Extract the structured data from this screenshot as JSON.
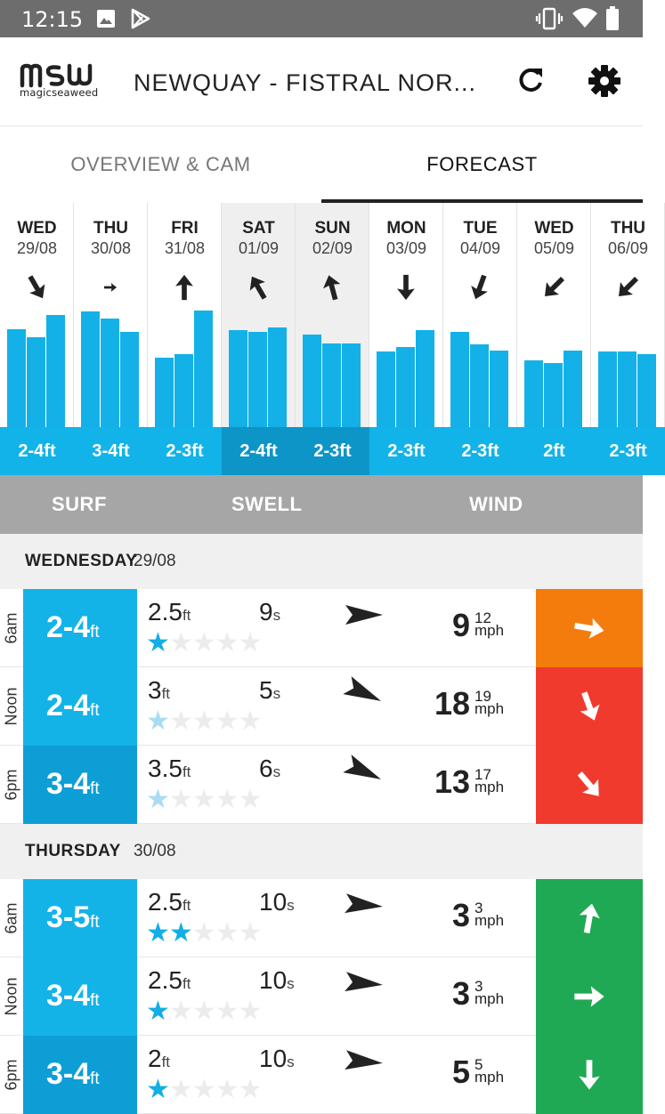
{
  "status_bar": {
    "time": "12:15",
    "icons": [
      "image-icon",
      "play-store-icon",
      "vibrate-icon",
      "wifi-icon",
      "battery-icon"
    ]
  },
  "app_bar": {
    "logo_text": "magicseaweed",
    "logo_mark": "msw",
    "title": "NEWQUAY - FISTRAL NOR...",
    "refresh_icon": "refresh-icon",
    "settings_icon": "gear-icon"
  },
  "tabs": [
    {
      "label": "OVERVIEW & CAM",
      "active": false
    },
    {
      "label": "FORECAST",
      "active": true
    }
  ],
  "days": [
    {
      "name": "WED",
      "date": "29/08",
      "range": "2-4ft",
      "arrow_deg": 150,
      "bars": [
        0.69,
        0.63,
        0.79
      ],
      "highlighted": false
    },
    {
      "name": "THU",
      "date": "30/08",
      "range": "3-4ft",
      "arrow_deg": 90,
      "arrow_small": true,
      "bars": [
        0.81,
        0.76,
        0.67
      ],
      "highlighted": false
    },
    {
      "name": "FRI",
      "date": "31/08",
      "range": "2-3ft",
      "arrow_deg": 0,
      "bars": [
        0.49,
        0.51,
        0.82
      ],
      "highlighted": false
    },
    {
      "name": "SAT",
      "date": "01/09",
      "range": "2-4ft",
      "arrow_deg": -30,
      "bars": [
        0.68,
        0.67,
        0.7
      ],
      "highlighted": true
    },
    {
      "name": "SUN",
      "date": "02/09",
      "range": "2-3ft",
      "arrow_deg": -15,
      "bars": [
        0.65,
        0.59,
        0.59
      ],
      "highlighted": true
    },
    {
      "name": "MON",
      "date": "03/09",
      "range": "2-3ft",
      "arrow_deg": 180,
      "bars": [
        0.53,
        0.56,
        0.68
      ],
      "highlighted": false
    },
    {
      "name": "TUE",
      "date": "04/09",
      "range": "2-3ft",
      "arrow_deg": 200,
      "bars": [
        0.67,
        0.58,
        0.54
      ],
      "highlighted": false
    },
    {
      "name": "WED",
      "date": "05/09",
      "range": "2ft",
      "arrow_deg": 225,
      "bars": [
        0.47,
        0.45,
        0.54
      ],
      "highlighted": false
    },
    {
      "name": "THU",
      "date": "06/09",
      "range": "2-3ft",
      "arrow_deg": 225,
      "bars": [
        0.53,
        0.53,
        0.51
      ],
      "highlighted": false
    }
  ],
  "column_headers": {
    "surf": "SURF",
    "swell": "SWELL",
    "wind": "WIND"
  },
  "sections": [
    {
      "day_name": "WEDNESDAY",
      "day_date": "29/08",
      "rows": [
        {
          "time": "6am",
          "surf": "2-4",
          "surf_unit": "ft",
          "swell_height": "2.5",
          "swell_unit": "ft",
          "period": "9",
          "period_unit": "s",
          "stars": 1,
          "faded": false,
          "swell_dir_deg": 0,
          "wind_speed": "9",
          "wind_gust": "12",
          "wind_unit": "mph",
          "wind_color": "#f47c0c",
          "wind_dir_deg": 100
        },
        {
          "time": "Noon",
          "surf": "2-4",
          "surf_unit": "ft",
          "swell_height": "3",
          "swell_unit": "ft",
          "period": "5",
          "period_unit": "s",
          "stars": 1,
          "faded": true,
          "swell_dir_deg": 25,
          "wind_speed": "18",
          "wind_gust": "19",
          "wind_unit": "mph",
          "wind_color": "#f03a2e",
          "wind_dir_deg": 160
        },
        {
          "time": "6pm",
          "surf": "3-4",
          "surf_unit": "ft",
          "swell_height": "3.5",
          "swell_unit": "ft",
          "period": "6",
          "period_unit": "s",
          "stars": 1,
          "faded": true,
          "swell_dir_deg": 25,
          "wind_speed": "13",
          "wind_gust": "17",
          "wind_unit": "mph",
          "wind_color": "#f03a2e",
          "wind_dir_deg": 140
        }
      ]
    },
    {
      "day_name": "THURSDAY",
      "day_date": "30/08",
      "rows": [
        {
          "time": "6am",
          "surf": "3-5",
          "surf_unit": "ft",
          "swell_height": "2.5",
          "swell_unit": "ft",
          "period": "10",
          "period_unit": "s",
          "stars": 2,
          "faded": false,
          "swell_dir_deg": 5,
          "wind_speed": "3",
          "wind_gust": "3",
          "wind_unit": "mph",
          "wind_color": "#1fa955",
          "wind_dir_deg": 10
        },
        {
          "time": "Noon",
          "surf": "3-4",
          "surf_unit": "ft",
          "swell_height": "2.5",
          "swell_unit": "ft",
          "period": "10",
          "period_unit": "s",
          "stars": 1,
          "faded": false,
          "swell_dir_deg": 5,
          "wind_speed": "3",
          "wind_gust": "3",
          "wind_unit": "mph",
          "wind_color": "#1fa955",
          "wind_dir_deg": 90
        },
        {
          "time": "6pm",
          "surf": "3-4",
          "surf_unit": "ft",
          "swell_height": "2",
          "swell_unit": "ft",
          "period": "10",
          "period_unit": "s",
          "stars": 1,
          "faded": false,
          "swell_dir_deg": 5,
          "wind_speed": "5",
          "wind_gust": "5",
          "wind_unit": "mph",
          "wind_color": "#1fa955",
          "wind_dir_deg": 180
        }
      ]
    }
  ]
}
